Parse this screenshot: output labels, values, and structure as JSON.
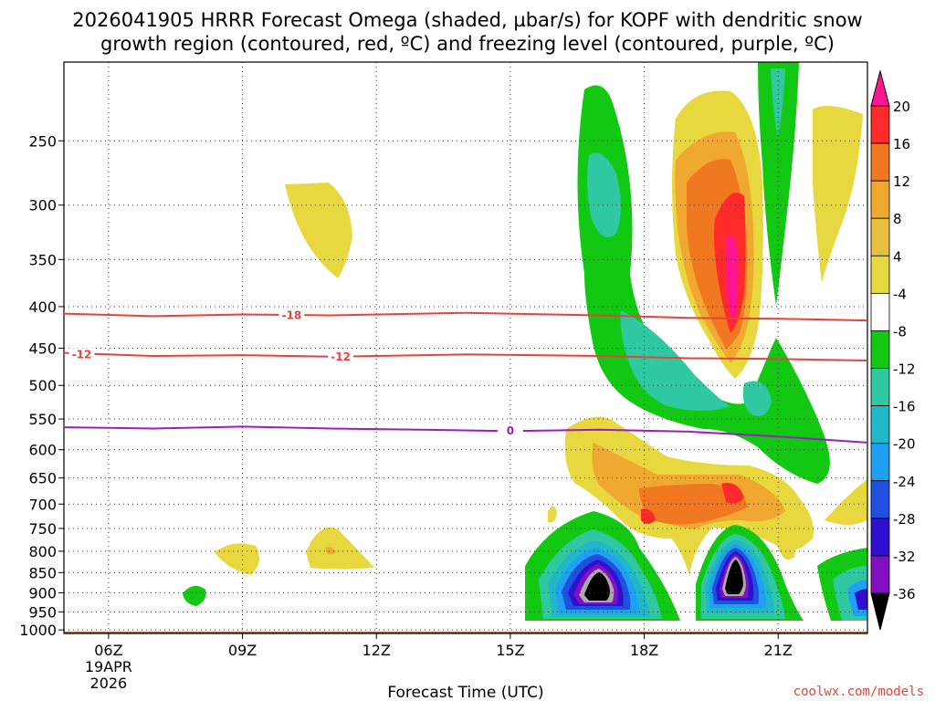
{
  "title_line1": "2026041905 HRRR Forecast Omega (shaded, µbar/s) for KOPF with dendritic snow",
  "title_line2": "growth region (contoured, red, ºC) and freezing level (contoured, purple, ºC)",
  "credit": "coolwx.com/models",
  "colors": {
    "ground": "#a0522d",
    "dgz_contour": "#e8433a",
    "freezing_contour": "#9b1fc0",
    "grid": "#888888"
  },
  "chart_data": {
    "type": "heatmap",
    "xlabel": "Forecast Time (UTC)",
    "ylabel": "",
    "x_ticks": [
      {
        "hour": 6,
        "label": "06Z",
        "date": "19APR",
        "year": "2026"
      },
      {
        "hour": 9,
        "label": "09Z"
      },
      {
        "hour": 12,
        "label": "12Z"
      },
      {
        "hour": 15,
        "label": "15Z"
      },
      {
        "hour": 18,
        "label": "18Z"
      },
      {
        "hour": 21,
        "label": "21Z"
      }
    ],
    "xlim": [
      5,
      23
    ],
    "ylim": [
      1010,
      200
    ],
    "y_ticks": [
      250,
      300,
      350,
      400,
      450,
      500,
      550,
      600,
      650,
      700,
      750,
      800,
      850,
      900,
      950,
      1000
    ],
    "colorbar": {
      "levels": [
        20,
        16,
        12,
        8,
        4,
        -4,
        -8,
        -12,
        -16,
        -20,
        -24,
        -28,
        -32,
        -36
      ],
      "labels": [
        "20",
        "16",
        "12",
        "8",
        "4",
        "-4",
        "-8",
        "-12",
        "-16",
        "-20",
        "-24",
        "-28",
        "-32",
        "-36"
      ],
      "colors": [
        "#ff1493",
        "#ff2a2a",
        "#f07820",
        "#f0a830",
        "#e8c040",
        "#e8d840",
        "#ffffff",
        "#12c812",
        "#30c8a0",
        "#20b8c8",
        "#20a0f0",
        "#2050e0",
        "#3010d0",
        "#8010c0",
        "#aaaaaa",
        "#000000"
      ]
    },
    "contours": [
      {
        "name": "-18",
        "type": "dgz",
        "label": "-18",
        "points": [
          [
            5,
            408
          ],
          [
            7,
            411
          ],
          [
            9,
            409
          ],
          [
            11,
            410
          ],
          [
            14,
            407
          ],
          [
            17,
            410
          ],
          [
            19,
            413
          ],
          [
            21,
            414
          ],
          [
            23,
            416
          ]
        ],
        "label_at": [
          10.1,
          410
        ]
      },
      {
        "name": "-12",
        "type": "dgz",
        "label": "-12",
        "points": [
          [
            5,
            456
          ],
          [
            7,
            460
          ],
          [
            9,
            459
          ],
          [
            11,
            461
          ],
          [
            14,
            458
          ],
          [
            17,
            460
          ],
          [
            19,
            463
          ],
          [
            21,
            464
          ],
          [
            23,
            466
          ]
        ],
        "label_at": [
          5.4,
          458
        ],
        "label2": "-12",
        "label2_at": [
          11.2,
          461
        ]
      },
      {
        "name": "0",
        "type": "freezing",
        "label": "0",
        "points": [
          [
            5,
            563
          ],
          [
            7,
            565
          ],
          [
            9,
            562
          ],
          [
            11,
            565
          ],
          [
            13,
            567
          ],
          [
            15,
            569
          ],
          [
            17,
            567
          ],
          [
            19,
            570
          ],
          [
            21,
            578
          ],
          [
            23,
            588
          ]
        ],
        "label_at": [
          15.0,
          569
        ]
      }
    ]
  }
}
